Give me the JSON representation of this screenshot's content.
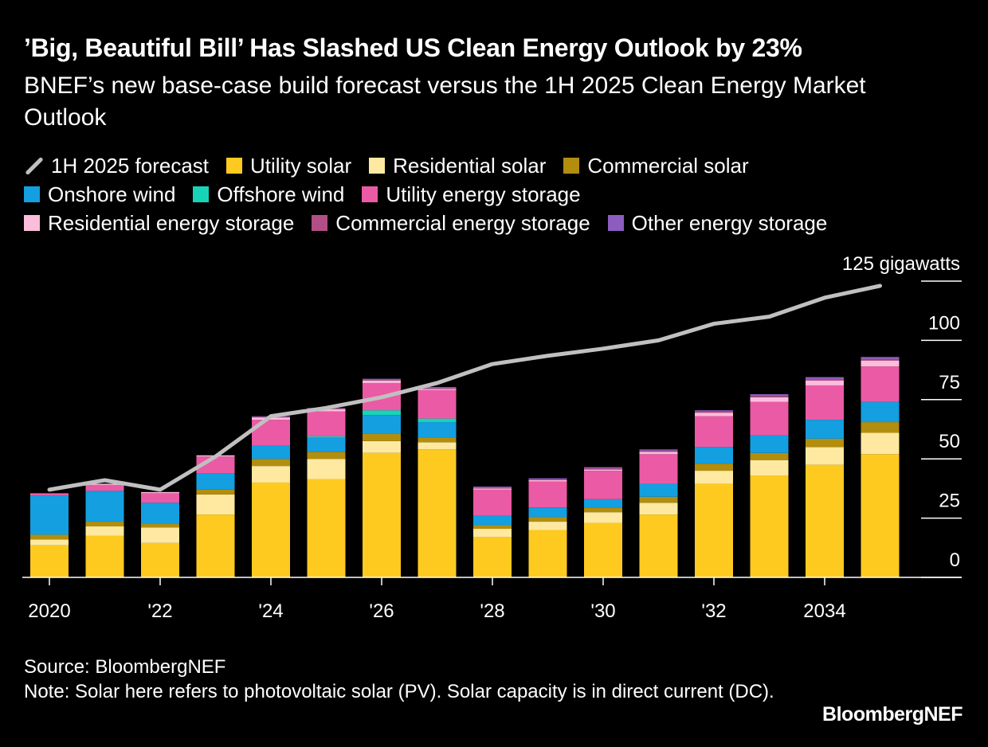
{
  "header": {
    "title": "’Big, Beautiful Bill’ Has Slashed US Clean Energy Outlook by 23%",
    "subtitle": "BNEF’s new base-case build forecast versus the 1H 2025 Clean Energy Market Outlook"
  },
  "legend": {
    "rows": [
      [
        {
          "label": "1H 2025 forecast",
          "kind": "line",
          "color": "#c0c0c0"
        },
        {
          "label": "Utility solar",
          "kind": "box",
          "color": "#ffca1f"
        },
        {
          "label": "Residential solar",
          "kind": "box",
          "color": "#ffe9a1"
        },
        {
          "label": "Commercial solar",
          "kind": "box",
          "color": "#b38d0d"
        }
      ],
      [
        {
          "label": "Onshore wind",
          "kind": "box",
          "color": "#139fe0"
        },
        {
          "label": "Offshore wind",
          "kind": "box",
          "color": "#17d4b7"
        },
        {
          "label": "Utility energy storage",
          "kind": "box",
          "color": "#eb5aa5"
        }
      ],
      [
        {
          "label": "Residential energy storage",
          "kind": "box",
          "color": "#fcbcdc"
        },
        {
          "label": "Commercial energy storage",
          "kind": "box",
          "color": "#b34e84"
        },
        {
          "label": "Other energy storage",
          "kind": "box",
          "color": "#8d5cbf"
        }
      ]
    ]
  },
  "footer": {
    "source": "Source: BloombergNEF",
    "note": "Note: Solar here refers to photovoltaic solar (PV). Solar capacity is in direct current (DC).",
    "brand": "BloombergNEF"
  },
  "chart_data": {
    "type": "bar",
    "stacked": true,
    "unit_label": "125 gigawatts",
    "ylim": [
      0,
      125
    ],
    "y_ticks": [
      {
        "value": 125,
        "label": "125 gigawatts"
      },
      {
        "value": 100,
        "label": "100"
      },
      {
        "value": 75,
        "label": "75"
      },
      {
        "value": 50,
        "label": "50"
      },
      {
        "value": 25,
        "label": "25"
      },
      {
        "value": 0,
        "label": "0"
      }
    ],
    "categories": [
      "2020",
      "2021",
      "2022",
      "2023",
      "2024",
      "2025",
      "2026",
      "2027",
      "2028",
      "2029",
      "2030",
      "2031",
      "2032",
      "2033",
      "2034",
      "2035"
    ],
    "x_tick_labels": [
      {
        "index": 0,
        "label": "2020"
      },
      {
        "index": 2,
        "label": "'22"
      },
      {
        "index": 4,
        "label": "'24"
      },
      {
        "index": 6,
        "label": "'26"
      },
      {
        "index": 8,
        "label": "'28"
      },
      {
        "index": 10,
        "label": "'30"
      },
      {
        "index": 12,
        "label": "'32"
      },
      {
        "index": 14,
        "label": "2034"
      }
    ],
    "series": [
      {
        "name": "Utility solar",
        "color": "#ffca1f",
        "values": [
          13.5,
          17.5,
          14.5,
          26.5,
          40,
          41.5,
          52.5,
          54,
          17,
          20,
          23,
          26.5,
          39.5,
          43,
          47.5,
          52
        ]
      },
      {
        "name": "Residential solar",
        "color": "#ffe9a1",
        "values": [
          2.5,
          4,
          6.5,
          8.5,
          7,
          8.5,
          5,
          3,
          3.5,
          3.5,
          4.5,
          5,
          5.5,
          6.5,
          7.5,
          9
        ]
      },
      {
        "name": "Commercial solar",
        "color": "#b38d0d",
        "values": [
          2,
          2,
          1.5,
          2,
          3,
          3,
          3,
          2,
          1.5,
          2,
          2,
          2.5,
          3,
          3,
          3.5,
          4.5
        ]
      },
      {
        "name": "Onshore wind",
        "color": "#139fe0",
        "values": [
          16.5,
          13,
          9,
          7,
          5.5,
          6,
          8,
          6.5,
          4,
          4,
          3.5,
          5.5,
          7,
          7.5,
          8,
          8.5
        ]
      },
      {
        "name": "Offshore wind",
        "color": "#17d4b7",
        "values": [
          0,
          0,
          0,
          0,
          0,
          0.5,
          2,
          1.5,
          0,
          0,
          0,
          0,
          0,
          0,
          0,
          0
        ]
      },
      {
        "name": "Utility energy storage",
        "color": "#eb5aa5",
        "values": [
          1,
          2.5,
          4,
          7,
          11,
          10.5,
          11.5,
          12,
          11,
          11,
          12,
          12.5,
          13,
          14,
          14.5,
          15
        ]
      },
      {
        "name": "Residential energy storage",
        "color": "#fcbcdc",
        "values": [
          0,
          0.5,
          0.5,
          0.5,
          1,
          1,
          1,
          0.5,
          0.5,
          0.5,
          0.5,
          1,
          1.5,
          2,
          2,
          2.5
        ]
      },
      {
        "name": "Commercial energy storage",
        "color": "#b34e84",
        "values": [
          0,
          0,
          0,
          0,
          0.3,
          0.3,
          0.3,
          0.3,
          0.3,
          0.3,
          0.5,
          0.5,
          0.5,
          0.5,
          0.5,
          0.5
        ]
      },
      {
        "name": "Other energy storage",
        "color": "#8d5cbf",
        "values": [
          0,
          0,
          0,
          0,
          0.2,
          0.2,
          0.5,
          0.5,
          0.5,
          0.5,
          0.5,
          0.5,
          0.5,
          0.8,
          1,
          1
        ]
      }
    ],
    "line_series": {
      "name": "1H 2025 forecast",
      "color": "#c0c0c0",
      "values": [
        37,
        41,
        37,
        51,
        68,
        71.5,
        76,
        82,
        90,
        93.5,
        96.5,
        100,
        107,
        110,
        118,
        123
      ]
    },
    "grid": false
  }
}
